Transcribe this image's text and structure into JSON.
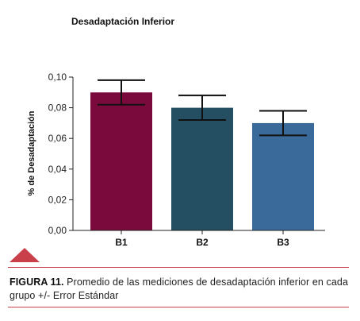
{
  "chart_data": {
    "type": "bar",
    "title": "Desadaptación Inferior",
    "ylabel": "% de Desadaptación",
    "xlabel": "",
    "categories": [
      "B1",
      "B2",
      "B3"
    ],
    "values": [
      0.09,
      0.08,
      0.07
    ],
    "error": [
      0.008,
      0.008,
      0.008
    ],
    "error_bar_label": "+/- Error Estándar",
    "ylim": [
      0,
      0.1
    ],
    "yticks": [
      "0,10",
      "0,08",
      "0,06",
      "0,04",
      "0,02",
      "0,00"
    ],
    "ytick_values": [
      0.1,
      0.08,
      0.06,
      0.04,
      0.02,
      0.0
    ],
    "colors": [
      "#7a0a3c",
      "#244f63",
      "#3a6a9a"
    ],
    "grid": false,
    "legend": "none"
  },
  "caption": {
    "label": "FIGURA 11.",
    "text": " Promedio de las mediciones de desadaptación inferior en cada grupo +/- Error Estándar"
  },
  "accent_color": "#c9404a"
}
